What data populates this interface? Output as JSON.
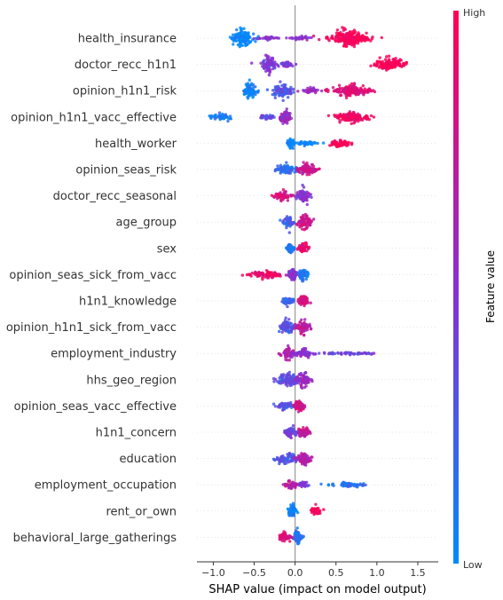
{
  "chart_data": {
    "type": "beeswarm",
    "title": "",
    "xlabel": "SHAP value (impact on model output)",
    "xlim": [
      -1.2,
      1.75
    ],
    "xticks": [
      -1.0,
      -0.5,
      0.0,
      0.5,
      1.0,
      1.5
    ],
    "xtick_labels": [
      "−1.0",
      "−0.5",
      "0.0",
      "0.5",
      "1.0",
      "1.5"
    ],
    "colorbar": {
      "title": "Feature value",
      "high_label": "High",
      "low_label": "Low",
      "low_color": "#008bfb",
      "high_color": "#ff0052"
    },
    "features": [
      {
        "name": "health_insurance",
        "clusters": [
          {
            "center": -0.65,
            "spread": 0.14,
            "height": 1.0,
            "color": 0.0
          },
          {
            "center": -0.33,
            "spread": 0.1,
            "height": 0.2,
            "color": 0.5
          },
          {
            "center": 0.07,
            "spread": 0.15,
            "height": 0.2,
            "color": 0.5
          },
          {
            "center": 0.65,
            "spread": 0.25,
            "height": 0.9,
            "color": 1.0
          }
        ]
      },
      {
        "name": "doctor_recc_h1n1",
        "clusters": [
          {
            "center": -0.33,
            "spread": 0.1,
            "height": 1.0,
            "color": 0.45
          },
          {
            "center": -0.1,
            "spread": 0.08,
            "height": 0.4,
            "color": 0.45
          },
          {
            "center": 1.15,
            "spread": 0.2,
            "height": 0.65,
            "color": 1.0
          }
        ]
      },
      {
        "name": "opinion_h1n1_risk",
        "clusters": [
          {
            "center": -0.55,
            "spread": 0.09,
            "height": 0.85,
            "color": 0.05
          },
          {
            "center": -0.15,
            "spread": 0.12,
            "height": 0.85,
            "color": 0.3
          },
          {
            "center": 0.2,
            "spread": 0.1,
            "height": 0.35,
            "color": 0.6
          },
          {
            "center": 0.7,
            "spread": 0.25,
            "height": 0.65,
            "color": 0.85
          }
        ]
      },
      {
        "name": "opinion_h1n1_vacc_effective",
        "clusters": [
          {
            "center": -0.9,
            "spread": 0.12,
            "height": 0.45,
            "color": 0.1
          },
          {
            "center": -0.35,
            "spread": 0.1,
            "height": 0.3,
            "color": 0.35
          },
          {
            "center": -0.12,
            "spread": 0.07,
            "height": 0.75,
            "color": 0.55
          },
          {
            "center": 0.68,
            "spread": 0.18,
            "height": 0.75,
            "color": 0.95
          }
        ]
      },
      {
        "name": "health_worker",
        "clusters": [
          {
            "center": -0.05,
            "spread": 0.05,
            "height": 0.55,
            "color": 0.0
          },
          {
            "center": 0.15,
            "spread": 0.15,
            "height": 0.25,
            "color": 0.0
          },
          {
            "center": 0.55,
            "spread": 0.12,
            "height": 0.55,
            "color": 1.0
          }
        ]
      },
      {
        "name": "opinion_seas_risk",
        "clusters": [
          {
            "center": -0.1,
            "spread": 0.15,
            "height": 0.6,
            "color": 0.15
          },
          {
            "center": 0.15,
            "spread": 0.12,
            "height": 0.7,
            "color": 0.75
          }
        ]
      },
      {
        "name": "doctor_recc_seasonal",
        "clusters": [
          {
            "center": -0.15,
            "spread": 0.12,
            "height": 0.5,
            "color": 0.85
          },
          {
            "center": 0.1,
            "spread": 0.08,
            "height": 0.9,
            "color": 0.5
          }
        ]
      },
      {
        "name": "age_group",
        "clusters": [
          {
            "center": -0.08,
            "spread": 0.06,
            "height": 0.7,
            "color": 0.25
          },
          {
            "center": 0.12,
            "spread": 0.09,
            "height": 0.8,
            "color": 0.8
          }
        ]
      },
      {
        "name": "sex",
        "clusters": [
          {
            "center": -0.06,
            "spread": 0.05,
            "height": 0.6,
            "color": 0.1
          },
          {
            "center": 0.1,
            "spread": 0.06,
            "height": 0.6,
            "color": 0.9
          }
        ]
      },
      {
        "name": "opinion_seas_sick_from_vacc",
        "clusters": [
          {
            "center": -0.35,
            "spread": 0.2,
            "height": 0.45,
            "color": 0.9
          },
          {
            "center": -0.03,
            "spread": 0.05,
            "height": 0.8,
            "color": 0.5
          },
          {
            "center": 0.1,
            "spread": 0.06,
            "height": 0.6,
            "color": 0.1
          }
        ]
      },
      {
        "name": "h1n1_knowledge",
        "clusters": [
          {
            "center": -0.08,
            "spread": 0.08,
            "height": 0.5,
            "color": 0.2
          },
          {
            "center": 0.1,
            "spread": 0.08,
            "height": 0.6,
            "color": 0.8
          }
        ]
      },
      {
        "name": "opinion_h1n1_sick_from_vacc",
        "clusters": [
          {
            "center": -0.1,
            "spread": 0.08,
            "height": 0.8,
            "color": 0.3
          },
          {
            "center": 0.1,
            "spread": 0.08,
            "height": 0.8,
            "color": 0.7
          }
        ]
      },
      {
        "name": "employment_industry",
        "clusters": [
          {
            "center": -0.08,
            "spread": 0.1,
            "height": 0.6,
            "color": 0.65
          },
          {
            "center": 0.1,
            "spread": 0.12,
            "height": 0.55,
            "color": 0.5
          },
          {
            "center": 0.7,
            "spread": 0.4,
            "height": 0.15,
            "color": 0.4
          }
        ]
      },
      {
        "name": "hhs_geo_region",
        "clusters": [
          {
            "center": -0.1,
            "spread": 0.15,
            "height": 0.75,
            "color": 0.35
          },
          {
            "center": 0.1,
            "spread": 0.1,
            "height": 0.75,
            "color": 0.55
          }
        ]
      },
      {
        "name": "opinion_seas_vacc_effective",
        "clusters": [
          {
            "center": -0.12,
            "spread": 0.12,
            "height": 0.55,
            "color": 0.3
          },
          {
            "center": 0.05,
            "spread": 0.06,
            "height": 0.75,
            "color": 0.8
          }
        ]
      },
      {
        "name": "h1n1_concern",
        "clusters": [
          {
            "center": -0.05,
            "spread": 0.08,
            "height": 0.7,
            "color": 0.4
          },
          {
            "center": 0.1,
            "spread": 0.08,
            "height": 0.65,
            "color": 0.75
          }
        ]
      },
      {
        "name": "education",
        "clusters": [
          {
            "center": -0.1,
            "spread": 0.15,
            "height": 0.6,
            "color": 0.3
          },
          {
            "center": 0.1,
            "spread": 0.1,
            "height": 0.7,
            "color": 0.65
          }
        ]
      },
      {
        "name": "employment_occupation",
        "clusters": [
          {
            "center": -0.05,
            "spread": 0.08,
            "height": 0.5,
            "color": 0.7
          },
          {
            "center": 0.1,
            "spread": 0.08,
            "height": 0.3,
            "color": 0.45
          },
          {
            "center": 0.65,
            "spread": 0.2,
            "height": 0.3,
            "color": 0.15
          }
        ]
      },
      {
        "name": "rent_or_own",
        "clusters": [
          {
            "center": -0.03,
            "spread": 0.05,
            "height": 0.7,
            "color": 0.05
          },
          {
            "center": 0.25,
            "spread": 0.07,
            "height": 0.45,
            "color": 1.0
          }
        ]
      },
      {
        "name": "behavioral_large_gatherings",
        "clusters": [
          {
            "center": -0.12,
            "spread": 0.08,
            "height": 0.6,
            "color": 0.8
          },
          {
            "center": 0.03,
            "spread": 0.05,
            "height": 0.8,
            "color": 0.15
          }
        ]
      }
    ]
  }
}
